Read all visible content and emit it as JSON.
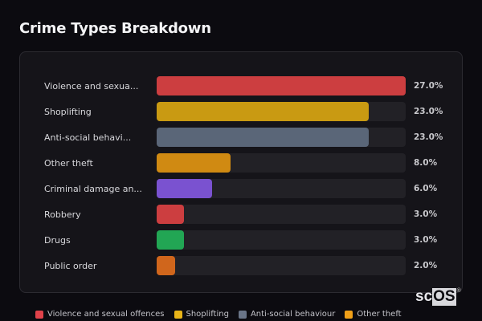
{
  "header": {
    "title": "Crime Types Breakdown"
  },
  "chart_data": {
    "type": "bar",
    "orientation": "horizontal",
    "title": "Crime Types Breakdown",
    "categories": [
      "Violence and sexual offences",
      "Shoplifting",
      "Anti-social behaviour",
      "Other theft",
      "Criminal damage and arson",
      "Robbery",
      "Drugs",
      "Public order"
    ],
    "display_labels": [
      "Violence and sexua...",
      "Shoplifting",
      "Anti-social behavi...",
      "Other theft",
      "Criminal damage an...",
      "Robbery",
      "Drugs",
      "Public order"
    ],
    "values": [
      27.0,
      23.0,
      23.0,
      8.0,
      6.0,
      3.0,
      3.0,
      2.0
    ],
    "value_labels": [
      "27.0%",
      "23.0%",
      "23.0%",
      "8.0%",
      "6.0%",
      "3.0%",
      "3.0%",
      "2.0%"
    ],
    "colors": [
      "#cc3e40",
      "#c99a12",
      "#5a6678",
      "#d08a12",
      "#7a52d0",
      "#cc3e40",
      "#22a654",
      "#d0661c"
    ],
    "xlim": [
      0,
      27
    ],
    "unit": "%",
    "grid": false,
    "legend_position": "bottom"
  },
  "legend": {
    "items": [
      {
        "label": "Violence and sexual offences",
        "color": "#e0424a"
      },
      {
        "label": "Shoplifting",
        "color": "#e8b418"
      },
      {
        "label": "Anti-social behaviour",
        "color": "#6a7588"
      },
      {
        "label": "Other theft",
        "color": "#f0a018"
      }
    ]
  },
  "watermark": {
    "prefix": "sc",
    "boxed": "OS",
    "mark": "®"
  }
}
